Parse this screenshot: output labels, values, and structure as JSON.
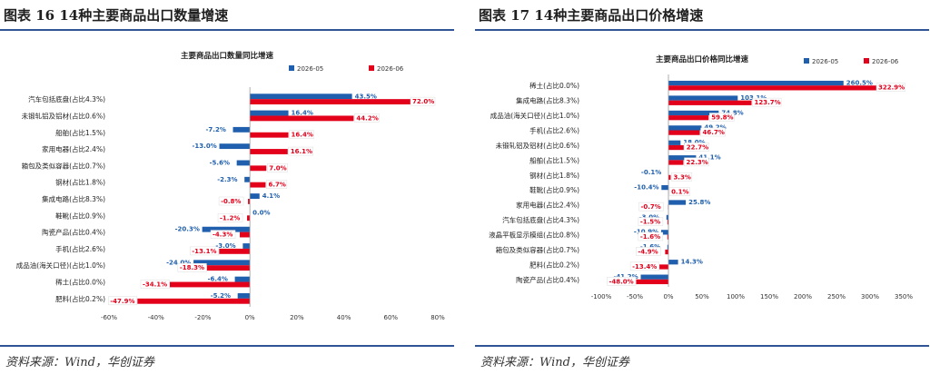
{
  "colors": {
    "series1": "#1f5fad",
    "series2": "#e3001b",
    "rule": "#2f5597"
  },
  "left": {
    "fig_title": "图表 16 14种主要商品出口数量增速",
    "source": "资料来源：Wind，华创证券"
  },
  "right": {
    "fig_title": "图表 17 14种主要商品出口价格增速",
    "source": "资料来源：Wind，华创证券"
  },
  "chart_data": [
    {
      "type": "bar",
      "orientation": "horizontal",
      "title": "主要商品出口数量同比增速",
      "legend_position": "top",
      "grid": false,
      "categories": [
        "汽车包括底盘(占比4.3%)",
        "未锻轧铝及铝材(占比0.6%)",
        "船舶(占比1.5%)",
        "家用电器(占比2.4%)",
        "箱包及类似容器(占比0.7%)",
        "钢材(占比1.8%)",
        "集成电路(占比8.3%)",
        "鞋靴(占比0.9%)",
        "陶瓷产品(占比0.4%)",
        "手机(占比2.6%)",
        "成品油(海关口径)(占比1.0%)",
        "稀土(占比0.0%)",
        "肥料(占比0.2%)"
      ],
      "series": [
        {
          "name": "2026-05",
          "values": [
            43.5,
            16.4,
            -7.2,
            -13.0,
            -5.6,
            -2.3,
            4.1,
            0.0,
            -20.3,
            -3.0,
            -24.0,
            -6.4,
            -5.2
          ],
          "labels": [
            "43.5%",
            "16.4%",
            "-7.2%",
            "-13.0%",
            "-5.6%",
            "-2.3%",
            "4.1%",
            "0.0%",
            "-20.3%",
            "-3.0%",
            "-24.0%",
            "-6.4%",
            "-5.2%"
          ]
        },
        {
          "name": "2026-06",
          "values": [
            72.0,
            44.2,
            16.4,
            16.1,
            7.0,
            6.7,
            -0.8,
            -1.2,
            -4.3,
            -13.1,
            -18.3,
            -34.1,
            -47.9
          ],
          "labels": [
            "72.0%",
            "44.2%",
            "16.4%",
            "16.1%",
            "7.0%",
            "6.7%",
            "-0.8%",
            "-1.2%",
            "-4.3%",
            "-13.1%",
            "-18.3%",
            "-34.1%",
            "-47.9%"
          ]
        }
      ],
      "xlim": [
        -60,
        80
      ],
      "ticks": [
        -60,
        -40,
        -20,
        0,
        20,
        40,
        60,
        80
      ],
      "tick_labels": [
        "-60%",
        "-40%",
        "-20%",
        "0%",
        "20%",
        "40%",
        "60%",
        "80%"
      ]
    },
    {
      "type": "bar",
      "orientation": "horizontal",
      "title": "主要商品出口价格同比增速",
      "legend_position": "top-right",
      "grid": false,
      "categories": [
        "稀土(占比0.0%)",
        "集成电路(占比8.3%)",
        "成品油(海关口径)(占比1.0%)",
        "手机(占比2.6%)",
        "未锻轧铝及铝材(占比0.6%)",
        "船舶(占比1.5%)",
        "钢材(占比1.8%)",
        "鞋靴(占比0.9%)",
        "家用电器(占比2.4%)",
        "汽车包括底盘(占比4.3%)",
        "液晶平板显示模组(占比0.8%)",
        "箱包及类似容器(占比0.7%)",
        "肥料(占比0.2%)",
        "陶瓷产品(占比0.4%)"
      ],
      "series": [
        {
          "name": "2026-05",
          "values": [
            260.5,
            103.1,
            74.8,
            49.2,
            18.0,
            41.1,
            -0.1,
            -10.4,
            25.8,
            -3.0,
            -10.9,
            -1.6,
            14.3,
            -41.2
          ],
          "labels": [
            "260.5%",
            "103.1%",
            "74.8%",
            "49.2%",
            "18.0%",
            "41.1%",
            "-0.1%",
            "-10.4%",
            "25.8%",
            "-3.0%",
            "-10.9%",
            "-1.6%",
            "14.3%",
            "-41.2%"
          ]
        },
        {
          "name": "2026-06",
          "values": [
            322.9,
            123.7,
            59.8,
            46.7,
            22.7,
            22.3,
            3.3,
            0.1,
            -0.7,
            -1.5,
            -1.6,
            -4.9,
            -13.4,
            -48.0
          ],
          "labels": [
            "322.9%",
            "123.7%",
            "59.8%",
            "46.7%",
            "22.7%",
            "22.3%",
            "3.3%",
            "0.1%",
            "-0.7%",
            "-1.5%",
            "-1.6%",
            "-4.9%",
            "-13.4%",
            "-48.0%"
          ]
        }
      ],
      "extra_labels": [
        "0.7%"
      ],
      "xlim": [
        -100,
        350
      ],
      "ticks": [
        -100,
        -50,
        0,
        50,
        100,
        150,
        200,
        250,
        300,
        350
      ],
      "tick_labels": [
        "-100%",
        "-50%",
        "0%",
        "50%",
        "100%",
        "150%",
        "200%",
        "250%",
        "300%",
        "350%"
      ]
    }
  ]
}
